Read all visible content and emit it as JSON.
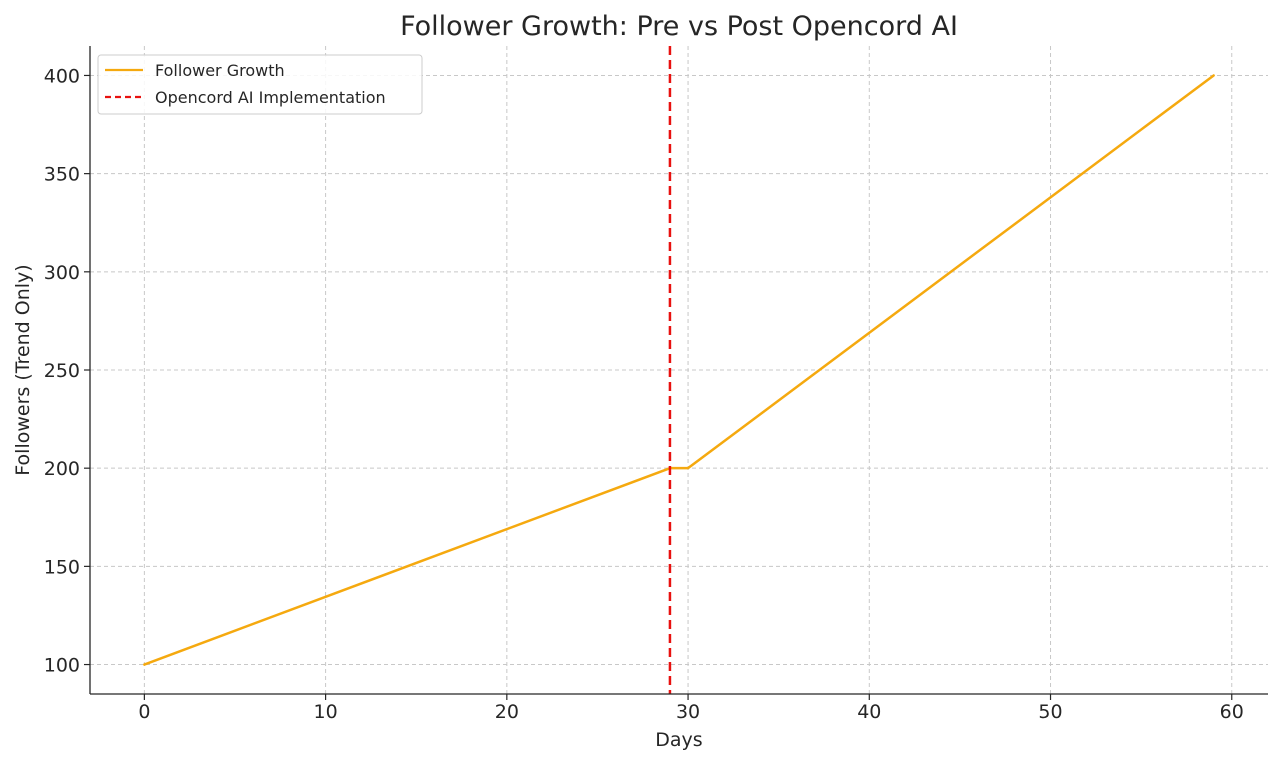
{
  "chart_data": {
    "type": "line",
    "title": "Follower Growth: Pre vs Post Opencord AI",
    "xlabel": "Days",
    "ylabel": "Followers (Trend Only)",
    "xlim": [
      -3,
      62
    ],
    "ylim": [
      85,
      415
    ],
    "x_ticks": [
      0,
      10,
      20,
      30,
      40,
      50,
      60
    ],
    "y_ticks": [
      100,
      150,
      200,
      250,
      300,
      350,
      400
    ],
    "grid": true,
    "legend_position": "top-left",
    "series": [
      {
        "name": "Follower Growth",
        "color": "#F5A90F",
        "style": "solid",
        "x": [
          0,
          29,
          30,
          59
        ],
        "y": [
          100,
          200,
          200,
          400
        ]
      }
    ],
    "vlines": [
      {
        "name": "Opencord AI Implementation",
        "color": "#E8110F",
        "style": "dashed",
        "x": 29
      }
    ]
  }
}
